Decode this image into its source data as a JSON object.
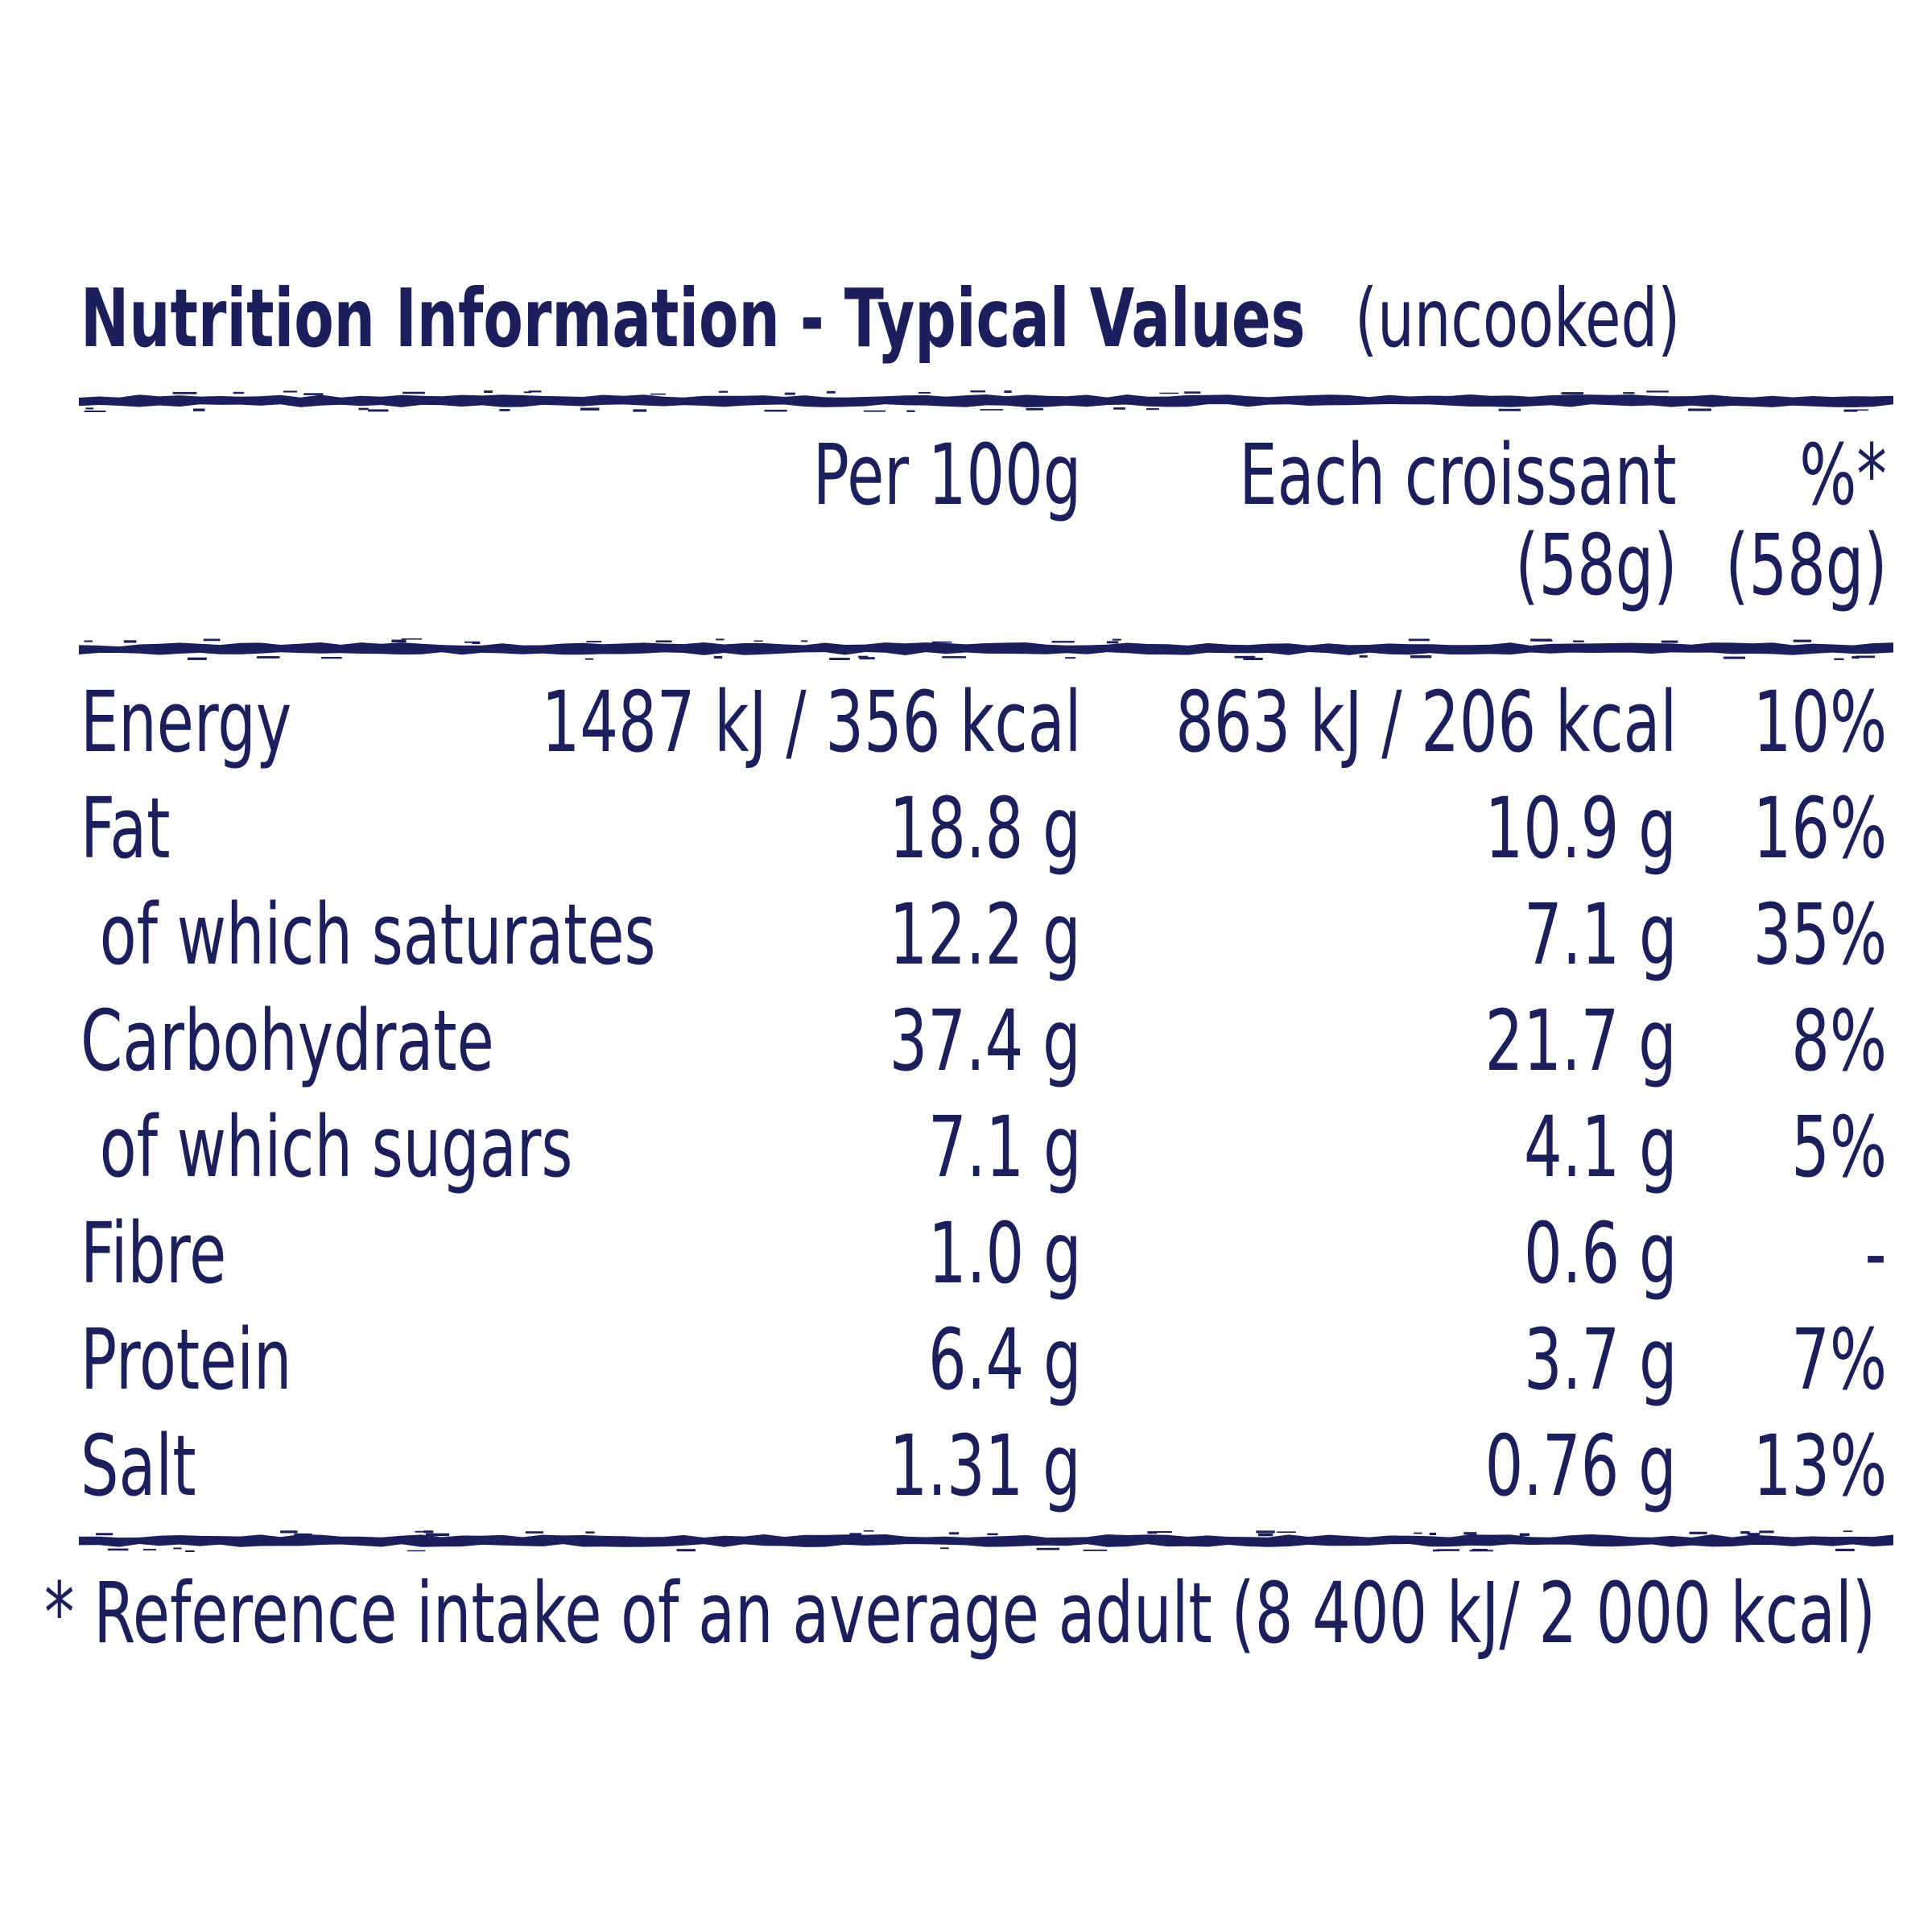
{
  "title": {
    "bold": "Nutrition Information - Typical Values",
    "light": "(uncooked)"
  },
  "columns": {
    "per100g": "Per 100g",
    "each_line1": "Each croissant",
    "each_line2": "(58g)",
    "ri_line1": "%*",
    "ri_line2": "(58g)"
  },
  "rows": [
    {
      "name": "Energy",
      "per100g": "1487 kJ / 356 kcal",
      "each": "863 kJ / 206 kcal",
      "ri": "10%"
    },
    {
      "name": "Fat",
      "per100g": "18.8 g",
      "each": "10.9 g",
      "ri": "16%"
    },
    {
      "name": " of which saturates",
      "per100g": "12.2 g",
      "each": "7.1 g",
      "ri": "35%"
    },
    {
      "name": "Carbohydrate",
      "per100g": "37.4 g",
      "each": "21.7 g",
      "ri": "8%"
    },
    {
      "name": " of which sugars",
      "per100g": "7.1 g",
      "each": "4.1 g",
      "ri": "5%"
    },
    {
      "name": "Fibre",
      "per100g": "1.0 g",
      "each": "0.6 g",
      "ri": "-"
    },
    {
      "name": "Protein",
      "per100g": "6.4 g",
      "each": "3.7 g",
      "ri": "7%"
    },
    {
      "name": "Salt",
      "per100g": "1.31 g",
      "each": "0.76 g",
      "ri": "13%"
    }
  ],
  "footnote": "* Reference intake of an average adult (8 400 kJ/ 2 000 kcal)",
  "colors": {
    "ink": "#1b1f5c",
    "background": "#ffffff"
  }
}
